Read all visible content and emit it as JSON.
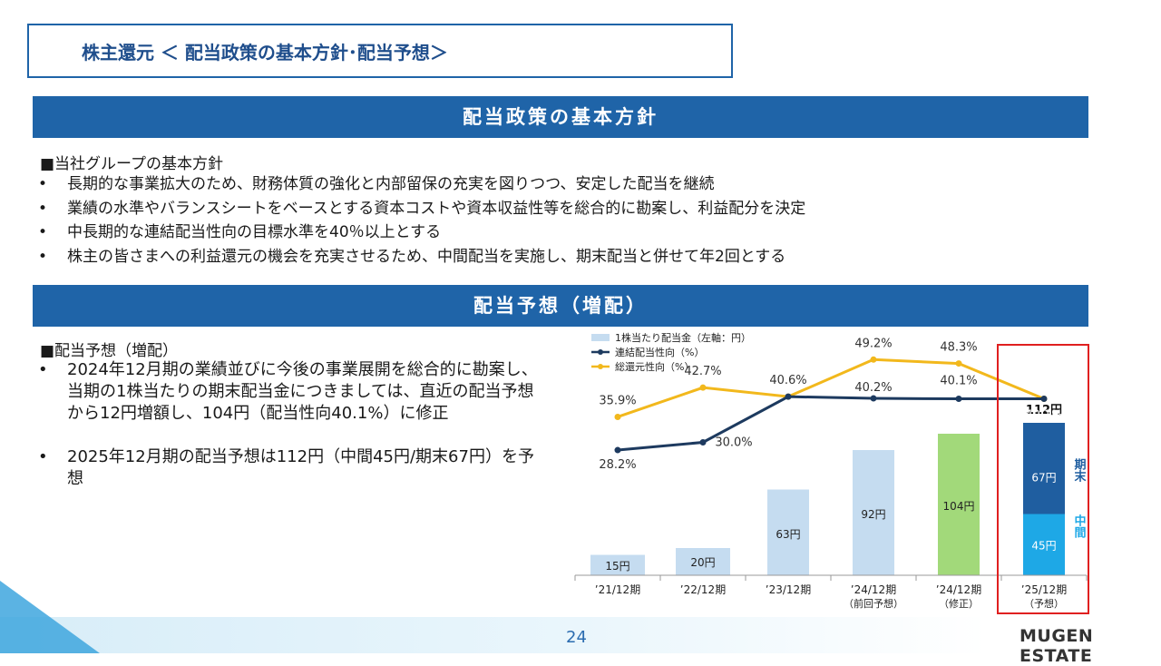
{
  "header": {
    "title": "株主還元 ＜ 配当政策の基本方針･配当予想＞"
  },
  "policy": {
    "band": "配当政策の基本方針",
    "heading": "■当社グループの基本方針",
    "bullet": "•",
    "items": [
      "長期的な事業拡大のため、財務体質の強化と内部留保の充実を図りつつ、安定した配当を継続",
      "業績の水準やバランスシートをベースとする資本コストや資本収益性等を総合的に勘案し、利益配分を決定",
      "中長期的な連結配当性向の目標水準を40％以上とする",
      "株主の皆さまへの利益還元の機会を充実させるため、中間配当を実施し、期末配当と併せて年2回とする"
    ]
  },
  "forecast": {
    "band": "配当予想（増配）",
    "heading": "■配当予想（増配）",
    "items": [
      "2024年12月期の業績並びに今後の事業展開を総合的に勘案し、当期の1株当たりの期末配当金につきましては、直近の配当予想から12円増額し、104円（配当性向40.1%）に修正",
      "2025年12月期の配当予想は112円（中間45円/期末67円）を予想"
    ]
  },
  "chart_data": {
    "type": "bar",
    "categories": [
      "’21/12期",
      "’22/12期",
      "’23/12期",
      "’24/12期",
      "’24/12期",
      "’25/12期"
    ],
    "category_sub": [
      "",
      "",
      "",
      "（前回予想）",
      "（修正）",
      "（予想）"
    ],
    "legend": [
      "1株当たり配当金（左軸：円）",
      "連結配当性向（%）",
      "総還元性向（%）"
    ],
    "dividends": [
      15,
      20,
      63,
      92,
      104,
      112
    ],
    "dividend_labels": [
      "15円",
      "20円",
      "63円",
      "92円",
      "104円",
      "112円"
    ],
    "interim_final_2025": {
      "interim": 45,
      "final": 67,
      "interim_label": "45円",
      "final_label": "67円",
      "interim_text": "中間",
      "final_text": "期末"
    },
    "payout_ratio": [
      28.2,
      30.0,
      40.6,
      40.2,
      40.1,
      40.1
    ],
    "payout_labels": [
      "28.2%",
      "30.0%",
      "",
      "40.2%",
      "40.1%",
      "40.1%"
    ],
    "total_return_ratio": [
      35.9,
      42.7,
      40.6,
      49.2,
      48.3,
      40.1
    ],
    "total_return_labels": [
      "35.9%",
      "42.7%",
      "40.6%",
      "49.2%",
      "48.3%",
      ""
    ],
    "colors": {
      "bar_light": "#c5dcf0",
      "bar_green": "#a2d97a",
      "bar_final": "#1f5ea0",
      "bar_interim": "#1ea8e6",
      "payout_line": "#1d3a5f",
      "total_line": "#f2b81c",
      "highlight": "#e02020"
    }
  },
  "footer": {
    "page": "24",
    "logo": "MUGEN ESTATE"
  }
}
